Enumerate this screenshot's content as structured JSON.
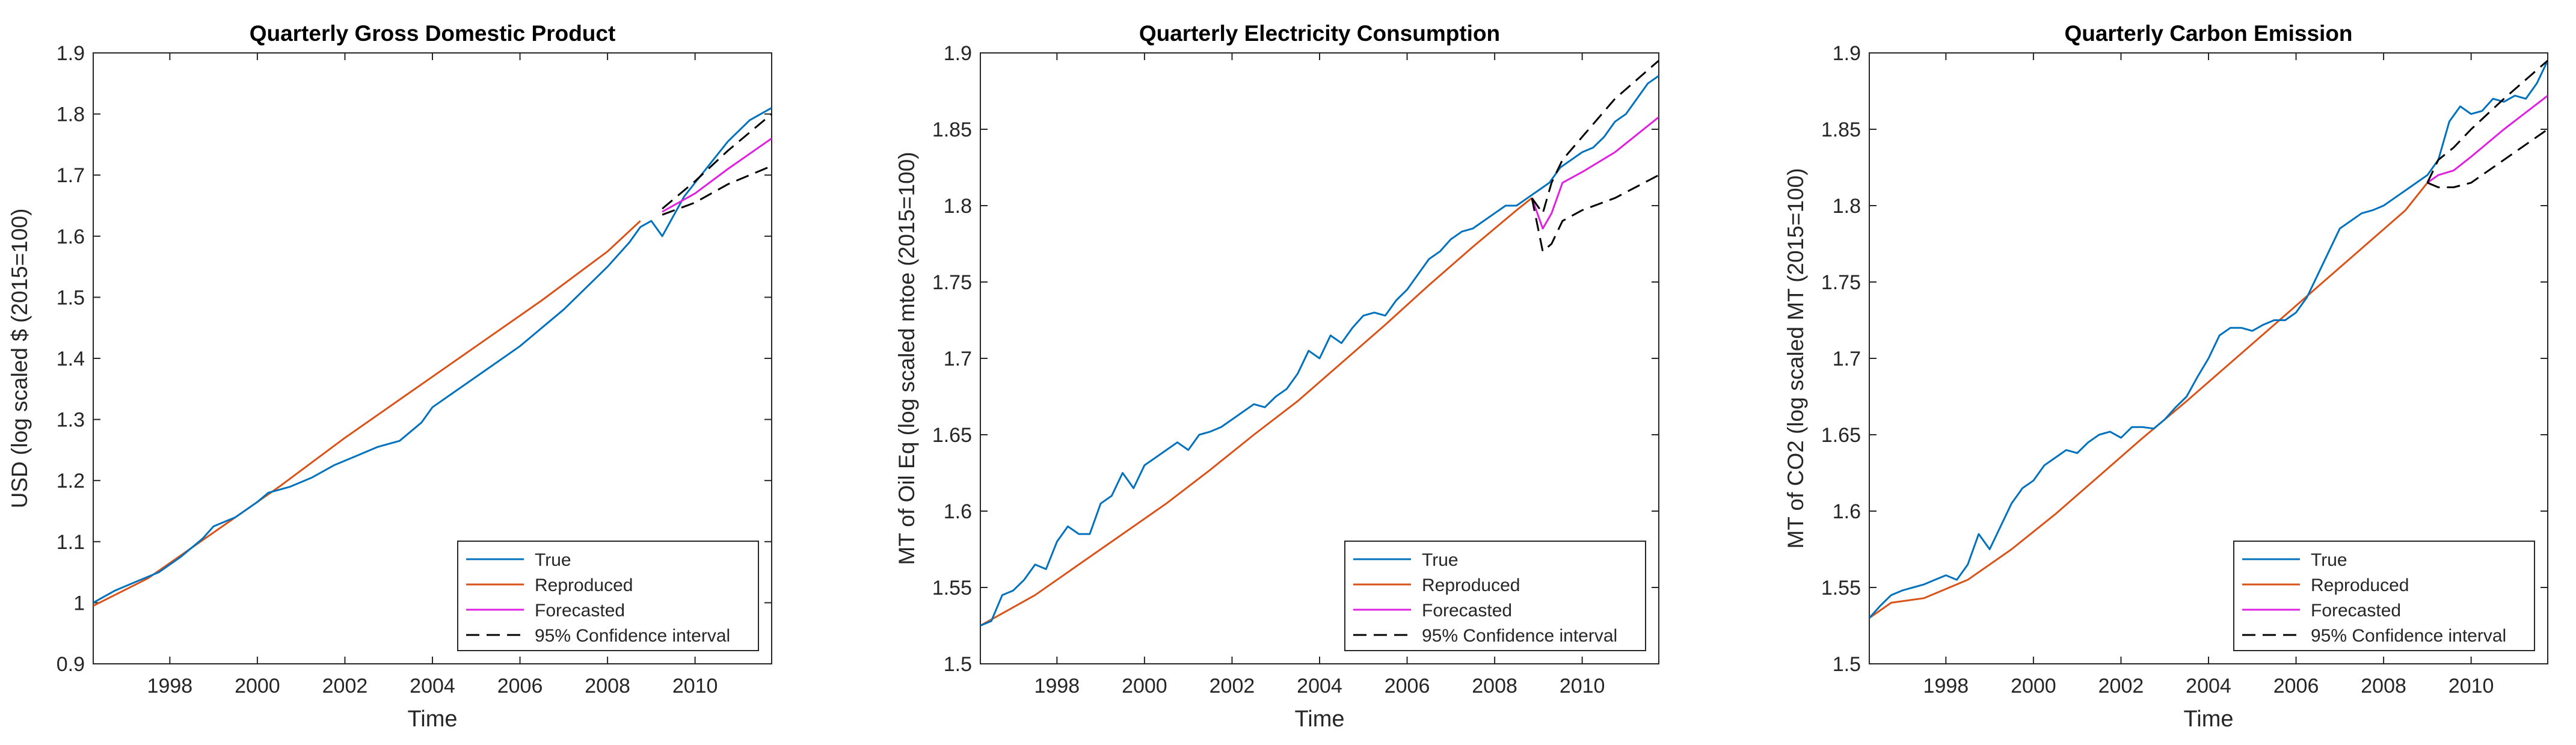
{
  "colors": {
    "true": "#0072BD",
    "reproduced": "#D95319",
    "forecasted": "#E020E0",
    "ci": "#000000",
    "axis": "#262626",
    "title": "#000000"
  },
  "legend_labels": [
    "True",
    "Reproduced",
    "Forecasted",
    "95% Confidence interval"
  ],
  "chart_data": [
    {
      "type": "line",
      "title": "Quarterly Gross Domestic Product",
      "xlabel": "Time",
      "ylabel": "USD (log scaled $ (2015=100)",
      "xlim": [
        1996.25,
        2011.75
      ],
      "ylim": [
        0.9,
        1.9
      ],
      "xticks": [
        1998,
        2000,
        2002,
        2004,
        2006,
        2008,
        2010
      ],
      "yticks": [
        0.9,
        1.0,
        1.1,
        1.2,
        1.3,
        1.4,
        1.5,
        1.6,
        1.7,
        1.8,
        1.9
      ],
      "ytick_labels": [
        "0.9",
        "1",
        "1.1",
        "1.2",
        "1.3",
        "1.4",
        "1.5",
        "1.6",
        "1.7",
        "1.8",
        "1.9"
      ],
      "legend_position": "bottom-right",
      "series": [
        {
          "key": "true",
          "name": "True",
          "x": [
            1996.25,
            1996.75,
            1997.25,
            1997.75,
            1998.25,
            1998.75,
            1999.0,
            1999.5,
            2000.0,
            2000.25,
            2000.75,
            2001.25,
            2001.75,
            2002.25,
            2002.75,
            2003.25,
            2003.75,
            2004.0,
            2004.5,
            2005.0,
            2005.5,
            2006.0,
            2006.5,
            2007.0,
            2007.5,
            2008.0,
            2008.5,
            2008.75,
            2009.0,
            2009.25,
            2009.75,
            2010.25,
            2010.75,
            2011.25,
            2011.75
          ],
          "y": [
            1.0,
            1.02,
            1.035,
            1.05,
            1.075,
            1.105,
            1.125,
            1.14,
            1.165,
            1.18,
            1.19,
            1.205,
            1.225,
            1.24,
            1.255,
            1.265,
            1.295,
            1.32,
            1.345,
            1.37,
            1.395,
            1.42,
            1.45,
            1.48,
            1.515,
            1.55,
            1.59,
            1.615,
            1.625,
            1.6,
            1.665,
            1.71,
            1.755,
            1.79,
            1.81
          ]
        },
        {
          "key": "reproduced",
          "name": "Reproduced",
          "x": [
            1996.25,
            1997.5,
            1999.0,
            2000.5,
            2002.0,
            2003.5,
            2005.0,
            2006.5,
            2008.0,
            2008.75
          ],
          "y": [
            0.995,
            1.04,
            1.115,
            1.19,
            1.27,
            1.345,
            1.42,
            1.495,
            1.575,
            1.625
          ]
        },
        {
          "key": "forecasted",
          "name": "Forecasted",
          "x": [
            2009.25,
            2010.0,
            2010.75,
            2011.75
          ],
          "y": [
            1.64,
            1.67,
            1.71,
            1.76
          ]
        },
        {
          "key": "ci_upper",
          "name": "95% Confidence interval",
          "x": [
            2009.25,
            2010.0,
            2010.75,
            2011.75
          ],
          "y": [
            1.645,
            1.69,
            1.74,
            1.8
          ]
        },
        {
          "key": "ci_lower",
          "name": "",
          "x": [
            2009.25,
            2010.0,
            2010.75,
            2011.75
          ],
          "y": [
            1.635,
            1.655,
            1.685,
            1.715
          ]
        }
      ]
    },
    {
      "type": "line",
      "title": "Quarterly Electricity Consumption",
      "xlabel": "Time",
      "ylabel": "MT of Oil Eq (log scaled mtoe (2015=100)",
      "xlim": [
        1996.25,
        2011.75
      ],
      "ylim": [
        1.5,
        1.9
      ],
      "xticks": [
        1998,
        2000,
        2002,
        2004,
        2006,
        2008,
        2010
      ],
      "yticks": [
        1.5,
        1.55,
        1.6,
        1.65,
        1.7,
        1.75,
        1.8,
        1.85,
        1.9
      ],
      "ytick_labels": [
        "1.5",
        "1.55",
        "1.6",
        "1.65",
        "1.7",
        "1.75",
        "1.8",
        "1.85",
        "1.9"
      ],
      "legend_position": "bottom-right",
      "series": [
        {
          "key": "true",
          "name": "True",
          "x": [
            1996.25,
            1996.5,
            1996.75,
            1997.0,
            1997.25,
            1997.5,
            1997.75,
            1998.0,
            1998.25,
            1998.5,
            1998.75,
            1999.0,
            1999.25,
            1999.5,
            1999.75,
            2000.0,
            2000.25,
            2000.5,
            2000.75,
            2001.0,
            2001.25,
            2001.5,
            2001.75,
            2002.0,
            2002.25,
            2002.5,
            2002.75,
            2003.0,
            2003.25,
            2003.5,
            2003.75,
            2004.0,
            2004.25,
            2004.5,
            2004.75,
            2005.0,
            2005.25,
            2005.5,
            2005.75,
            2006.0,
            2006.25,
            2006.5,
            2006.75,
            2007.0,
            2007.25,
            2007.5,
            2007.75,
            2008.0,
            2008.25,
            2008.5,
            2008.75,
            2009.0,
            2009.25,
            2009.5,
            2009.75,
            2010.0,
            2010.25,
            2010.5,
            2010.75,
            2011.0,
            2011.25,
            2011.5,
            2011.75
          ],
          "y": [
            1.525,
            1.528,
            1.545,
            1.548,
            1.555,
            1.565,
            1.562,
            1.58,
            1.59,
            1.585,
            1.585,
            1.605,
            1.61,
            1.625,
            1.615,
            1.63,
            1.635,
            1.64,
            1.645,
            1.64,
            1.65,
            1.652,
            1.655,
            1.66,
            1.665,
            1.67,
            1.668,
            1.675,
            1.68,
            1.69,
            1.705,
            1.7,
            1.715,
            1.71,
            1.72,
            1.728,
            1.73,
            1.728,
            1.738,
            1.745,
            1.755,
            1.765,
            1.77,
            1.778,
            1.783,
            1.785,
            1.79,
            1.795,
            1.8,
            1.8,
            1.805,
            1.81,
            1.815,
            1.825,
            1.83,
            1.835,
            1.838,
            1.845,
            1.855,
            1.86,
            1.87,
            1.88,
            1.885
          ]
        },
        {
          "key": "reproduced",
          "name": "Reproduced",
          "x": [
            1996.25,
            1996.75,
            1997.5,
            1998.5,
            1999.5,
            2000.5,
            2001.5,
            2002.5,
            2003.5,
            2004.5,
            2005.5,
            2006.5,
            2007.5,
            2008.5,
            2008.85
          ],
          "y": [
            1.525,
            1.533,
            1.545,
            1.565,
            1.585,
            1.605,
            1.627,
            1.65,
            1.672,
            1.697,
            1.722,
            1.748,
            1.773,
            1.797,
            1.805
          ]
        },
        {
          "key": "forecasted",
          "name": "Forecasted",
          "x": [
            2008.85,
            2009.1,
            2009.3,
            2009.55,
            2010.0,
            2010.75,
            2011.75
          ],
          "y": [
            1.805,
            1.785,
            1.795,
            1.815,
            1.822,
            1.835,
            1.858
          ]
        },
        {
          "key": "ci_upper",
          "name": "95% Confidence interval",
          "x": [
            2008.85,
            2009.1,
            2009.3,
            2009.55,
            2010.0,
            2010.75,
            2011.75
          ],
          "y": [
            1.805,
            1.795,
            1.815,
            1.83,
            1.845,
            1.87,
            1.895
          ]
        },
        {
          "key": "ci_lower",
          "name": "",
          "x": [
            2008.85,
            2009.1,
            2009.3,
            2009.55,
            2010.0,
            2010.75,
            2011.75
          ],
          "y": [
            1.805,
            1.77,
            1.775,
            1.79,
            1.797,
            1.805,
            1.82
          ]
        }
      ]
    },
    {
      "type": "line",
      "title": "Quarterly Carbon Emission",
      "xlabel": "Time",
      "ylabel": "MT of CO2 (log scaled MT (2015=100)",
      "xlim": [
        1996.25,
        2011.75
      ],
      "ylim": [
        1.5,
        1.9
      ],
      "xticks": [
        1998,
        2000,
        2002,
        2004,
        2006,
        2008,
        2010
      ],
      "yticks": [
        1.5,
        1.55,
        1.6,
        1.65,
        1.7,
        1.75,
        1.8,
        1.85,
        1.9
      ],
      "ytick_labels": [
        "1.5",
        "1.55",
        "1.6",
        "1.65",
        "1.7",
        "1.75",
        "1.8",
        "1.85",
        "1.9"
      ],
      "legend_position": "bottom-right",
      "series": [
        {
          "key": "true",
          "name": "True",
          "x": [
            1996.25,
            1996.5,
            1996.75,
            1997.0,
            1997.25,
            1997.5,
            1997.75,
            1998.0,
            1998.25,
            1998.5,
            1998.75,
            1999.0,
            1999.25,
            1999.5,
            1999.75,
            2000.0,
            2000.25,
            2000.5,
            2000.75,
            2001.0,
            2001.25,
            2001.5,
            2001.75,
            2002.0,
            2002.25,
            2002.5,
            2002.75,
            2003.0,
            2003.25,
            2003.5,
            2003.75,
            2004.0,
            2004.25,
            2004.5,
            2004.75,
            2005.0,
            2005.25,
            2005.5,
            2005.75,
            2006.0,
            2006.25,
            2006.5,
            2006.75,
            2007.0,
            2007.25,
            2007.5,
            2007.75,
            2008.0,
            2008.25,
            2008.5,
            2008.75,
            2009.0,
            2009.25,
            2009.5,
            2009.75,
            2010.0,
            2010.25,
            2010.5,
            2010.75,
            2011.0,
            2011.25,
            2011.5,
            2011.75
          ],
          "y": [
            1.53,
            1.538,
            1.545,
            1.548,
            1.55,
            1.552,
            1.555,
            1.558,
            1.555,
            1.565,
            1.585,
            1.575,
            1.59,
            1.605,
            1.615,
            1.62,
            1.63,
            1.635,
            1.64,
            1.638,
            1.645,
            1.65,
            1.652,
            1.648,
            1.655,
            1.655,
            1.654,
            1.66,
            1.668,
            1.675,
            1.688,
            1.7,
            1.715,
            1.72,
            1.72,
            1.718,
            1.722,
            1.725,
            1.725,
            1.73,
            1.74,
            1.755,
            1.77,
            1.785,
            1.79,
            1.795,
            1.797,
            1.8,
            1.805,
            1.81,
            1.815,
            1.82,
            1.83,
            1.855,
            1.865,
            1.86,
            1.862,
            1.87,
            1.868,
            1.872,
            1.87,
            1.88,
            1.895
          ]
        },
        {
          "key": "reproduced",
          "name": "Reproduced",
          "x": [
            1996.25,
            1996.75,
            1997.5,
            1998.5,
            1999.5,
            2000.5,
            2001.5,
            2002.5,
            2003.5,
            2004.5,
            2005.5,
            2006.5,
            2007.5,
            2008.5,
            2009.0
          ],
          "y": [
            1.53,
            1.54,
            1.543,
            1.555,
            1.575,
            1.598,
            1.623,
            1.648,
            1.672,
            1.697,
            1.722,
            1.747,
            1.772,
            1.797,
            1.815
          ]
        },
        {
          "key": "forecasted",
          "name": "Forecasted",
          "x": [
            2009.0,
            2009.25,
            2009.6,
            2010.0,
            2010.75,
            2011.75
          ],
          "y": [
            1.815,
            1.82,
            1.823,
            1.832,
            1.85,
            1.872
          ]
        },
        {
          "key": "ci_upper",
          "name": "95% Confidence interval",
          "x": [
            2009.0,
            2009.25,
            2009.6,
            2010.0,
            2010.75,
            2011.75
          ],
          "y": [
            1.815,
            1.83,
            1.838,
            1.85,
            1.87,
            1.895
          ]
        },
        {
          "key": "ci_lower",
          "name": "",
          "x": [
            2009.0,
            2009.25,
            2009.6,
            2010.0,
            2010.75,
            2011.75
          ],
          "y": [
            1.815,
            1.812,
            1.812,
            1.815,
            1.83,
            1.85
          ]
        }
      ]
    }
  ]
}
